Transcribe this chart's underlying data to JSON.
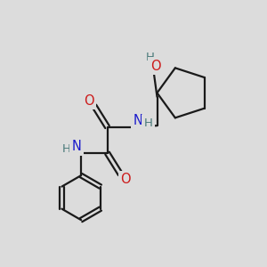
{
  "bg_color": "#dcdcdc",
  "bond_color": "#1a1a1a",
  "N_color": "#1a1acc",
  "O_color": "#cc1a1a",
  "H_color": "#4a7a7a",
  "line_width": 1.6,
  "figsize": [
    3.0,
    3.0
  ],
  "dpi": 100,
  "xlim": [
    0,
    10
  ],
  "ylim": [
    0,
    10
  ]
}
